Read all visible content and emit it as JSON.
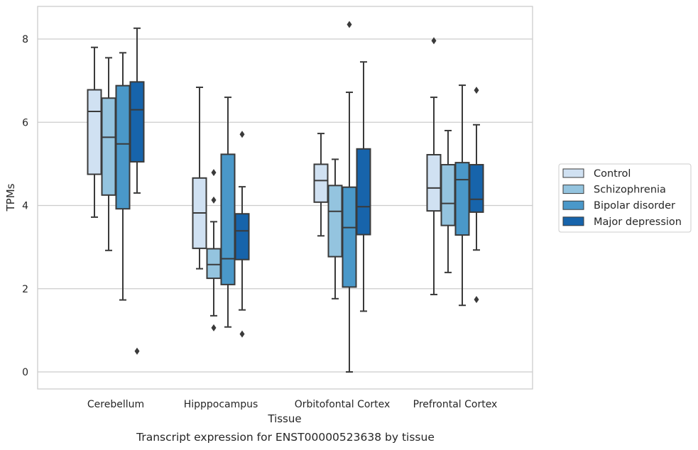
{
  "chart_data": {
    "type": "box",
    "caption": "Transcript expression for ENST00000523638 by tissue",
    "xlabel": "Tissue",
    "ylabel": "TPMs",
    "ylim": [
      -0.4,
      8.8
    ],
    "yticks": [
      0,
      2,
      4,
      6,
      8
    ],
    "grid": "horizontal",
    "legend_position": "right",
    "categories": [
      "Cerebellum",
      "Hipppocampus",
      "Orbitofontal Cortex",
      "Prefrontal Cortex"
    ],
    "series": [
      {
        "name": "Control",
        "color": "#d0e1f2",
        "boxes": [
          {
            "whisker_low": 3.72,
            "q1": 4.75,
            "median": 6.26,
            "q3": 6.78,
            "whisker_high": 7.8,
            "outliers": []
          },
          {
            "whisker_low": 2.48,
            "q1": 2.97,
            "median": 3.82,
            "q3": 4.66,
            "whisker_high": 6.84,
            "outliers": []
          },
          {
            "whisker_low": 3.27,
            "q1": 4.08,
            "median": 4.6,
            "q3": 4.99,
            "whisker_high": 5.73,
            "outliers": []
          },
          {
            "whisker_low": 1.86,
            "q1": 3.87,
            "median": 4.42,
            "q3": 5.22,
            "whisker_high": 6.6,
            "outliers": [
              7.96
            ]
          }
        ]
      },
      {
        "name": "Schizophrenia",
        "color": "#94c4df",
        "boxes": [
          {
            "whisker_low": 2.92,
            "q1": 4.25,
            "median": 5.64,
            "q3": 6.58,
            "whisker_high": 7.55,
            "outliers": []
          },
          {
            "whisker_low": 1.35,
            "q1": 2.25,
            "median": 2.58,
            "q3": 2.96,
            "whisker_high": 3.61,
            "outliers": [
              1.06,
              4.13,
              4.79
            ]
          },
          {
            "whisker_low": 1.76,
            "q1": 2.77,
            "median": 3.86,
            "q3": 4.48,
            "whisker_high": 5.11,
            "outliers": []
          },
          {
            "whisker_low": 2.39,
            "q1": 3.52,
            "median": 4.05,
            "q3": 4.98,
            "whisker_high": 5.8,
            "outliers": []
          }
        ]
      },
      {
        "name": "Bipolar disorder",
        "color": "#4a98c9",
        "boxes": [
          {
            "whisker_low": 1.73,
            "q1": 3.92,
            "median": 5.48,
            "q3": 6.88,
            "whisker_high": 7.67,
            "outliers": []
          },
          {
            "whisker_low": 1.08,
            "q1": 2.1,
            "median": 2.72,
            "q3": 5.23,
            "whisker_high": 6.6,
            "outliers": []
          },
          {
            "whisker_low": 0.0,
            "q1": 2.04,
            "median": 3.47,
            "q3": 4.44,
            "whisker_high": 6.72,
            "outliers": [
              8.35
            ]
          },
          {
            "whisker_low": 1.6,
            "q1": 3.29,
            "median": 4.62,
            "q3": 5.03,
            "whisker_high": 6.89,
            "outliers": []
          }
        ]
      },
      {
        "name": "Major depression",
        "color": "#1764ab",
        "boxes": [
          {
            "whisker_low": 4.3,
            "q1": 5.05,
            "median": 6.3,
            "q3": 6.97,
            "whisker_high": 8.26,
            "outliers": [
              0.5
            ]
          },
          {
            "whisker_low": 1.49,
            "q1": 2.7,
            "median": 3.39,
            "q3": 3.8,
            "whisker_high": 4.45,
            "outliers": [
              0.91,
              5.71
            ]
          },
          {
            "whisker_low": 1.46,
            "q1": 3.3,
            "median": 3.97,
            "q3": 5.36,
            "whisker_high": 7.45,
            "outliers": []
          },
          {
            "whisker_low": 2.93,
            "q1": 3.84,
            "median": 4.15,
            "q3": 4.98,
            "whisker_high": 5.94,
            "outliers": [
              1.74,
              6.77
            ]
          }
        ]
      }
    ]
  }
}
